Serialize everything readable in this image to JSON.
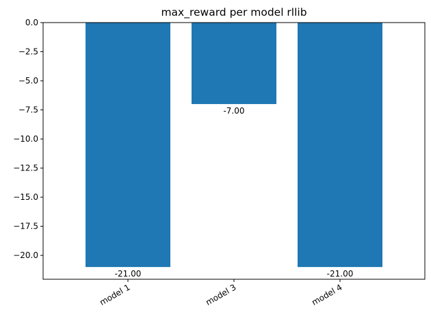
{
  "chart_data": {
    "type": "bar",
    "title": "max_reward per model rllib",
    "xlabel": "",
    "ylabel": "",
    "categories": [
      "model 1",
      "model 3",
      "model 4"
    ],
    "values": [
      -21.0,
      -7.0,
      -21.0
    ],
    "data_labels": [
      "-21.00",
      "-7.00",
      "-21.00"
    ],
    "ylim": [
      -22.05,
      0.0
    ],
    "yticks": [
      0.0,
      -2.5,
      -5.0,
      -7.5,
      -10.0,
      -12.5,
      -15.0,
      -17.5,
      -20.0
    ],
    "ytick_labels": [
      "0.0",
      "−2.5",
      "−5.0",
      "−7.5",
      "−10.0",
      "−12.5",
      "−15.0",
      "−17.5",
      "−20.0"
    ],
    "grid": false,
    "bar_color": "#1f77b4"
  }
}
